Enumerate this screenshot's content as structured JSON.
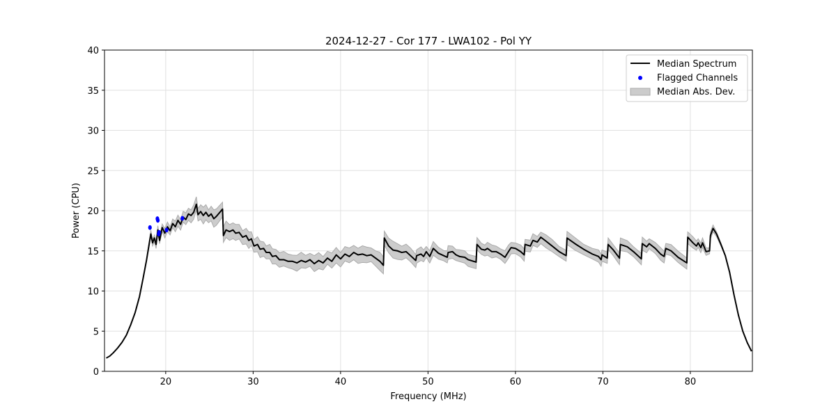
{
  "chart_data": {
    "type": "line",
    "title": "2024-12-27 - Cor 177 - LWA102 - Pol YY",
    "xlabel": "Frequency (MHz)",
    "ylabel": "Power (CPU)",
    "xlim": [
      13.0,
      87.1
    ],
    "ylim": [
      0,
      40
    ],
    "xticks": [
      20,
      30,
      40,
      50,
      60,
      70,
      80
    ],
    "yticks": [
      0,
      5,
      10,
      15,
      20,
      25,
      30,
      35,
      40
    ],
    "grid": true,
    "legend_position": "top-right",
    "legend": [
      "Median Spectrum",
      "Flagged Channels",
      "Median Abs. Dev."
    ],
    "colors": {
      "line": "#000000",
      "flagged": "#0000ff",
      "band": "#cccccc",
      "band_edge": "#aaaaaa",
      "grid": "#e0e0e0"
    },
    "series": [
      {
        "name": "Median Spectrum",
        "type": "line",
        "points": [
          [
            13.2,
            1.65
          ],
          [
            13.6,
            1.9
          ],
          [
            14.0,
            2.3
          ],
          [
            14.5,
            2.9
          ],
          [
            15.0,
            3.6
          ],
          [
            15.5,
            4.5
          ],
          [
            16.0,
            5.8
          ],
          [
            16.5,
            7.3
          ],
          [
            17.0,
            9.3
          ],
          [
            17.4,
            11.5
          ],
          [
            17.8,
            13.8
          ],
          [
            18.1,
            15.8
          ],
          [
            18.3,
            17.1
          ],
          [
            18.5,
            16.0
          ],
          [
            18.7,
            16.6
          ],
          [
            18.9,
            15.8
          ],
          [
            19.1,
            17.6
          ],
          [
            19.3,
            16.3
          ],
          [
            19.6,
            17.9
          ],
          [
            19.9,
            17.2
          ],
          [
            20.2,
            18.0
          ],
          [
            20.5,
            17.5
          ],
          [
            20.8,
            18.4
          ],
          [
            21.1,
            18.0
          ],
          [
            21.4,
            18.8
          ],
          [
            21.7,
            18.3
          ],
          [
            22.0,
            19.2
          ],
          [
            22.3,
            18.9
          ],
          [
            22.6,
            19.6
          ],
          [
            22.9,
            19.4
          ],
          [
            23.2,
            19.8
          ],
          [
            23.5,
            20.8
          ],
          [
            23.7,
            19.5
          ],
          [
            24.0,
            19.9
          ],
          [
            24.3,
            19.4
          ],
          [
            24.6,
            19.8
          ],
          [
            24.9,
            19.3
          ],
          [
            25.2,
            19.6
          ],
          [
            25.5,
            19.0
          ],
          [
            25.8,
            19.3
          ],
          [
            26.5,
            20.2
          ],
          [
            26.6,
            16.9
          ],
          [
            26.9,
            17.6
          ],
          [
            27.3,
            17.4
          ],
          [
            27.7,
            17.6
          ],
          [
            28.0,
            17.2
          ],
          [
            28.4,
            17.3
          ],
          [
            28.8,
            16.7
          ],
          [
            29.2,
            16.9
          ],
          [
            29.5,
            16.3
          ],
          [
            29.8,
            16.5
          ],
          [
            30.1,
            15.6
          ],
          [
            30.5,
            15.8
          ],
          [
            30.8,
            15.2
          ],
          [
            31.2,
            15.3
          ],
          [
            31.5,
            14.8
          ],
          [
            31.9,
            14.8
          ],
          [
            32.2,
            14.3
          ],
          [
            32.6,
            14.4
          ],
          [
            33.0,
            13.9
          ],
          [
            33.5,
            13.9
          ],
          [
            34.0,
            13.7
          ],
          [
            34.5,
            13.7
          ],
          [
            35.0,
            13.5
          ],
          [
            35.5,
            13.8
          ],
          [
            36.0,
            13.6
          ],
          [
            36.5,
            13.9
          ],
          [
            37.0,
            13.4
          ],
          [
            37.5,
            13.8
          ],
          [
            38.0,
            13.5
          ],
          [
            38.5,
            14.1
          ],
          [
            39.0,
            13.7
          ],
          [
            39.5,
            14.5
          ],
          [
            40.0,
            14.0
          ],
          [
            40.5,
            14.6
          ],
          [
            41.0,
            14.3
          ],
          [
            41.5,
            14.8
          ],
          [
            42.0,
            14.5
          ],
          [
            42.5,
            14.6
          ],
          [
            43.0,
            14.4
          ],
          [
            43.5,
            14.5
          ],
          [
            44.0,
            14.1
          ],
          [
            44.5,
            13.7
          ],
          [
            44.9,
            13.2
          ],
          [
            45.0,
            16.6
          ],
          [
            45.5,
            15.6
          ],
          [
            46.0,
            15.1
          ],
          [
            46.5,
            15.0
          ],
          [
            47.0,
            14.8
          ],
          [
            47.5,
            14.9
          ],
          [
            48.0,
            14.4
          ],
          [
            48.6,
            13.8
          ],
          [
            48.7,
            14.4
          ],
          [
            49.2,
            14.6
          ],
          [
            49.5,
            14.3
          ],
          [
            49.8,
            14.9
          ],
          [
            50.2,
            14.3
          ],
          [
            50.6,
            15.3
          ],
          [
            51.2,
            14.7
          ],
          [
            51.8,
            14.4
          ],
          [
            52.2,
            14.2
          ],
          [
            52.3,
            14.8
          ],
          [
            52.8,
            14.9
          ],
          [
            53.2,
            14.5
          ],
          [
            53.6,
            14.3
          ],
          [
            54.2,
            14.2
          ],
          [
            54.6,
            13.9
          ],
          [
            55.5,
            13.6
          ],
          [
            55.6,
            15.8
          ],
          [
            56.1,
            15.2
          ],
          [
            56.5,
            15.1
          ],
          [
            56.8,
            15.3
          ],
          [
            57.3,
            14.9
          ],
          [
            57.8,
            14.9
          ],
          [
            58.3,
            14.6
          ],
          [
            58.8,
            14.2
          ],
          [
            59.2,
            14.9
          ],
          [
            59.5,
            15.4
          ],
          [
            60.0,
            15.3
          ],
          [
            60.6,
            14.9
          ],
          [
            61.0,
            14.5
          ],
          [
            61.1,
            15.8
          ],
          [
            61.7,
            15.6
          ],
          [
            62.0,
            16.3
          ],
          [
            62.5,
            16.1
          ],
          [
            62.9,
            16.7
          ],
          [
            63.5,
            16.2
          ],
          [
            64.2,
            15.6
          ],
          [
            65.0,
            14.9
          ],
          [
            65.8,
            14.4
          ],
          [
            65.9,
            16.6
          ],
          [
            66.8,
            15.9
          ],
          [
            67.8,
            15.2
          ],
          [
            68.8,
            14.6
          ],
          [
            69.5,
            14.3
          ],
          [
            69.8,
            13.9
          ],
          [
            69.9,
            14.5
          ],
          [
            70.5,
            14.1
          ],
          [
            70.6,
            15.8
          ],
          [
            71.2,
            15.1
          ],
          [
            71.9,
            14.1
          ],
          [
            72.0,
            15.8
          ],
          [
            72.8,
            15.5
          ],
          [
            73.5,
            14.9
          ],
          [
            74.4,
            14.0
          ],
          [
            74.5,
            15.9
          ],
          [
            75.0,
            15.5
          ],
          [
            75.3,
            15.9
          ],
          [
            76.0,
            15.3
          ],
          [
            76.6,
            14.6
          ],
          [
            77.0,
            14.3
          ],
          [
            77.2,
            15.3
          ],
          [
            77.8,
            15.0
          ],
          [
            78.6,
            14.2
          ],
          [
            79.6,
            13.5
          ],
          [
            79.7,
            16.7
          ],
          [
            80.3,
            16.0
          ],
          [
            80.7,
            15.6
          ],
          [
            80.9,
            16.0
          ],
          [
            81.2,
            15.4
          ],
          [
            81.4,
            16.0
          ],
          [
            81.8,
            14.9
          ],
          [
            82.2,
            15.0
          ],
          [
            82.3,
            16.9
          ],
          [
            82.6,
            17.8
          ],
          [
            83.0,
            17.1
          ],
          [
            83.5,
            15.8
          ],
          [
            84.0,
            14.4
          ],
          [
            84.5,
            12.3
          ],
          [
            85.0,
            9.5
          ],
          [
            85.5,
            7.0
          ],
          [
            86.0,
            5.0
          ],
          [
            86.5,
            3.6
          ],
          [
            87.0,
            2.5
          ]
        ]
      },
      {
        "name": "Median Abs. Dev.",
        "type": "band",
        "mad_by_freq": [
          [
            13,
            0
          ],
          [
            17.5,
            0
          ],
          [
            18.2,
            0.4
          ],
          [
            21,
            0.6
          ],
          [
            24,
            0.9
          ],
          [
            26.5,
            1.0
          ],
          [
            30,
            0.9
          ],
          [
            40,
            0.9
          ],
          [
            45,
            1.0
          ],
          [
            50,
            0.75
          ],
          [
            80,
            0.7
          ],
          [
            82.5,
            0.4
          ],
          [
            84,
            0.1
          ],
          [
            85,
            0
          ],
          [
            87.1,
            0
          ]
        ]
      },
      {
        "name": "Flagged Channels",
        "type": "scatter",
        "points": [
          [
            18.2,
            17.9
          ],
          [
            19.05,
            19.0
          ],
          [
            19.1,
            18.8
          ],
          [
            19.2,
            17.1
          ],
          [
            19.25,
            17.3
          ],
          [
            20.1,
            17.6
          ],
          [
            21.9,
            19.05
          ]
        ]
      }
    ]
  }
}
